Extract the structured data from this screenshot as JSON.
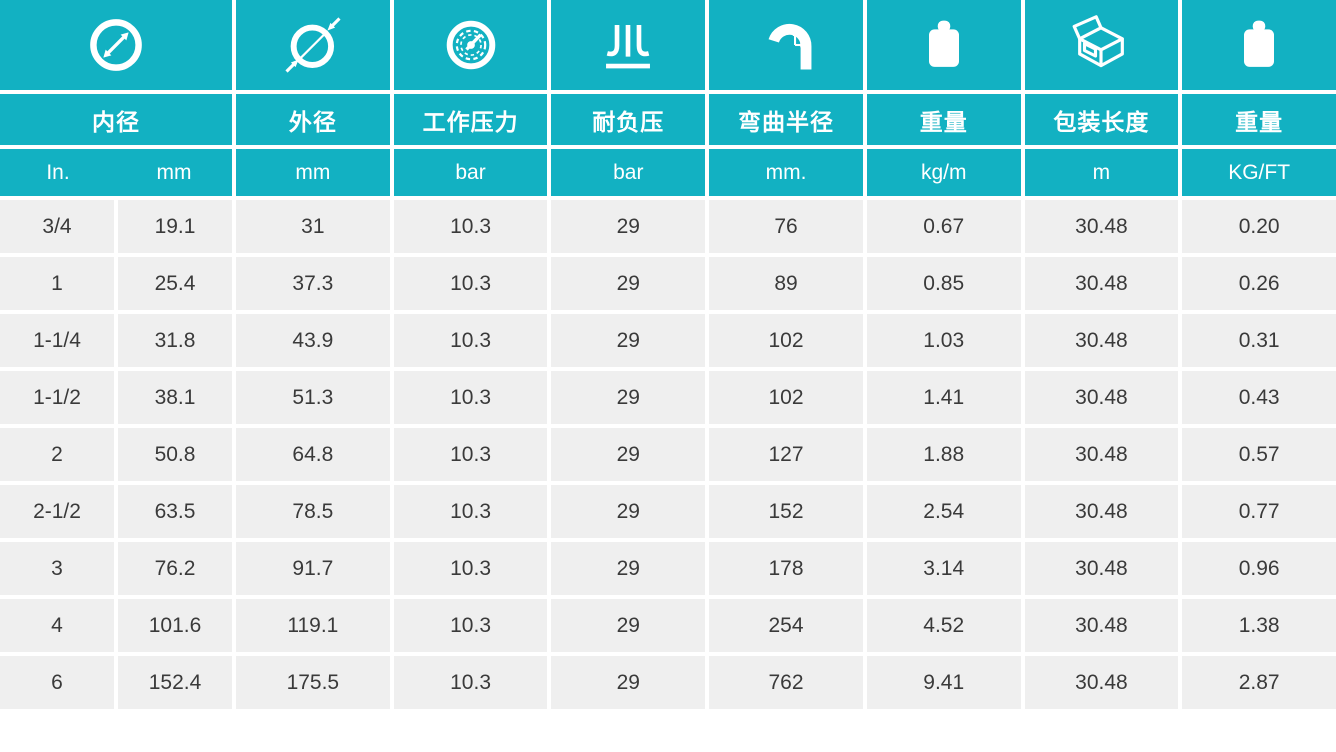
{
  "page": {
    "background": "#FFFFFF"
  },
  "table": {
    "accent_color": "#12B1C2",
    "cell_bg": "#EFEFEF",
    "text_color": "#3A3A3A",
    "header_text_color": "#FFFFFF",
    "groups": [
      {
        "name": "内径",
        "icon": "inner-diameter",
        "units": [
          "In.",
          "mm"
        ]
      },
      {
        "name": "外径",
        "icon": "outer-diameter",
        "units": [
          "mm"
        ]
      },
      {
        "name": "工作压力",
        "icon": "pressure-gauge",
        "units": [
          "bar"
        ]
      },
      {
        "name": "耐负压",
        "icon": "vacuum-resistance",
        "units": [
          "bar"
        ]
      },
      {
        "name": "弯曲半径",
        "icon": "bend-radius",
        "units": [
          "mm."
        ]
      },
      {
        "name": "重量",
        "icon": "weight",
        "units": [
          "kg/m"
        ]
      },
      {
        "name": "包装长度",
        "icon": "package-length",
        "units": [
          "m"
        ]
      },
      {
        "name": "重量",
        "icon": "weight",
        "units": [
          "KG/FT"
        ]
      }
    ],
    "rows": [
      [
        "3/4",
        "19.1",
        "31",
        "10.3",
        "29",
        "76",
        "0.67",
        "30.48",
        "0.20"
      ],
      [
        "1",
        "25.4",
        "37.3",
        "10.3",
        "29",
        "89",
        "0.85",
        "30.48",
        "0.26"
      ],
      [
        "1-1/4",
        "31.8",
        "43.9",
        "10.3",
        "29",
        "102",
        "1.03",
        "30.48",
        "0.31"
      ],
      [
        "1-1/2",
        "38.1",
        "51.3",
        "10.3",
        "29",
        "102",
        "1.41",
        "30.48",
        "0.43"
      ],
      [
        "2",
        "50.8",
        "64.8",
        "10.3",
        "29",
        "127",
        "1.88",
        "30.48",
        "0.57"
      ],
      [
        "2-1/2",
        "63.5",
        "78.5",
        "10.3",
        "29",
        "152",
        "2.54",
        "30.48",
        "0.77"
      ],
      [
        "3",
        "76.2",
        "91.7",
        "10.3",
        "29",
        "178",
        "3.14",
        "30.48",
        "0.96"
      ],
      [
        "4",
        "101.6",
        "119.1",
        "10.3",
        "29",
        "254",
        "4.52",
        "30.48",
        "1.38"
      ],
      [
        "6",
        "152.4",
        "175.5",
        "10.3",
        "29",
        "762",
        "9.41",
        "30.48",
        "2.87"
      ]
    ]
  }
}
